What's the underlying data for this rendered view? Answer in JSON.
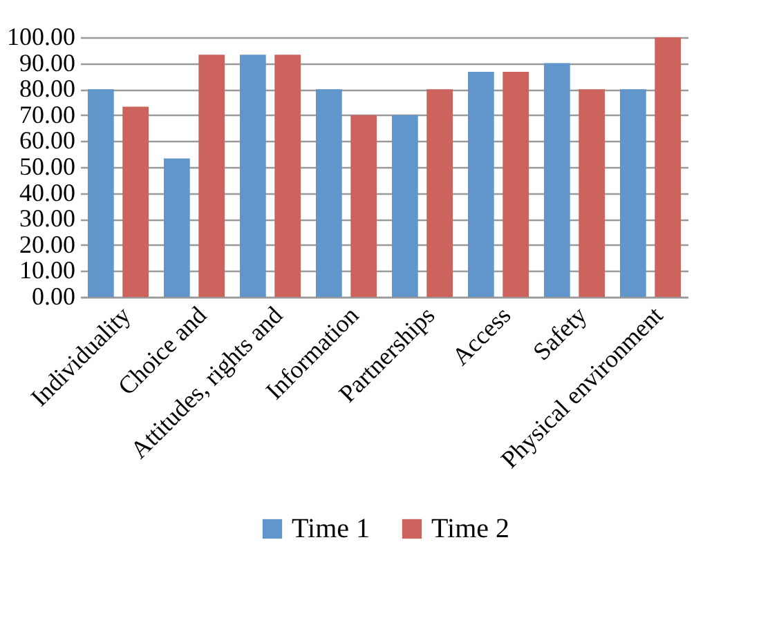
{
  "chart_data": {
    "type": "bar",
    "categories": [
      "Individuality",
      "Choice and",
      "Attitudes, rights and",
      "Information",
      "Partnerships",
      "Access",
      "Safety",
      "Physical environment"
    ],
    "series": [
      {
        "name": "Time 1",
        "color": "#6096ca",
        "values": [
          80,
          53.3,
          93.3,
          80,
          70,
          86.7,
          90,
          80
        ]
      },
      {
        "name": "Time 2",
        "color": "#cc645d",
        "values": [
          73.3,
          93.3,
          93.3,
          70,
          80,
          86.7,
          80,
          100
        ]
      }
    ],
    "ylim": [
      0,
      100
    ],
    "yticks": [
      {
        "value": 0,
        "label": "0.00"
      },
      {
        "value": 10,
        "label": "10.00"
      },
      {
        "value": 20,
        "label": "20.00"
      },
      {
        "value": 30,
        "label": "30.00"
      },
      {
        "value": 40,
        "label": "40.00"
      },
      {
        "value": 50,
        "label": "50.00"
      },
      {
        "value": 60,
        "label": "60.00"
      },
      {
        "value": 70,
        "label": "70.00"
      },
      {
        "value": 80,
        "label": "80.00"
      },
      {
        "value": 90,
        "label": "90.00"
      },
      {
        "value": 100,
        "label": "100.00"
      }
    ],
    "grid": "y",
    "legend": "bottom"
  }
}
